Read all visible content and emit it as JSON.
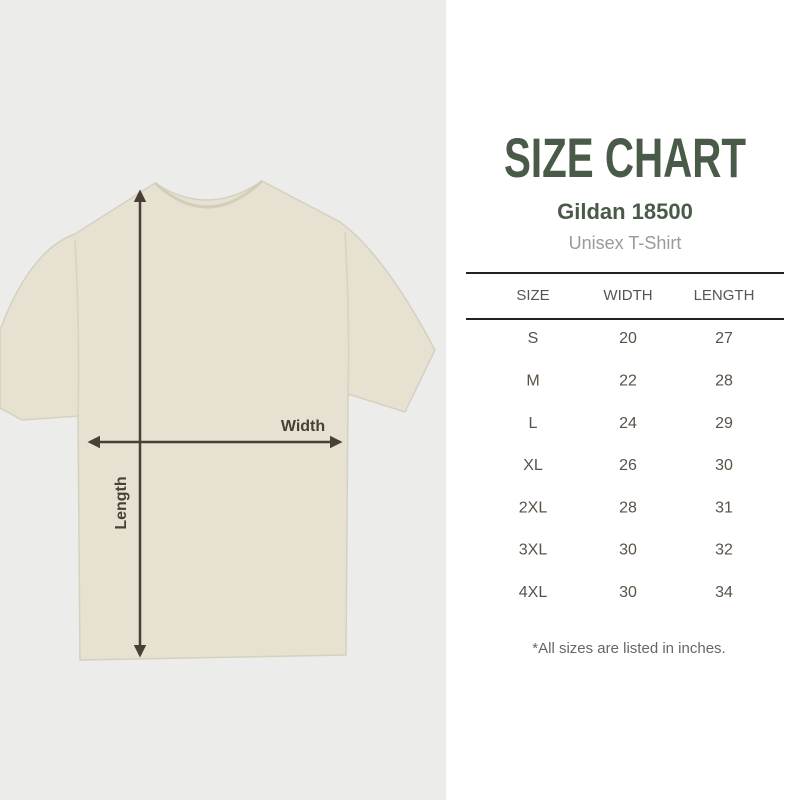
{
  "header": {
    "title": "SIZE CHART",
    "model": "Gildan 18500",
    "subtitle": "Unisex T-Shirt"
  },
  "diagram": {
    "width_label": "Width",
    "length_label": "Length"
  },
  "table": {
    "columns": [
      "SIZE",
      "WIDTH",
      "LENGTH"
    ],
    "rows": [
      [
        "S",
        20,
        27
      ],
      [
        "M",
        22,
        28
      ],
      [
        "L",
        24,
        29
      ],
      [
        "XL",
        26,
        30
      ],
      [
        "2XL",
        28,
        31
      ],
      [
        "3XL",
        30,
        32
      ],
      [
        "4XL",
        30,
        34
      ]
    ]
  },
  "note": "*All sizes are listed in inches."
}
